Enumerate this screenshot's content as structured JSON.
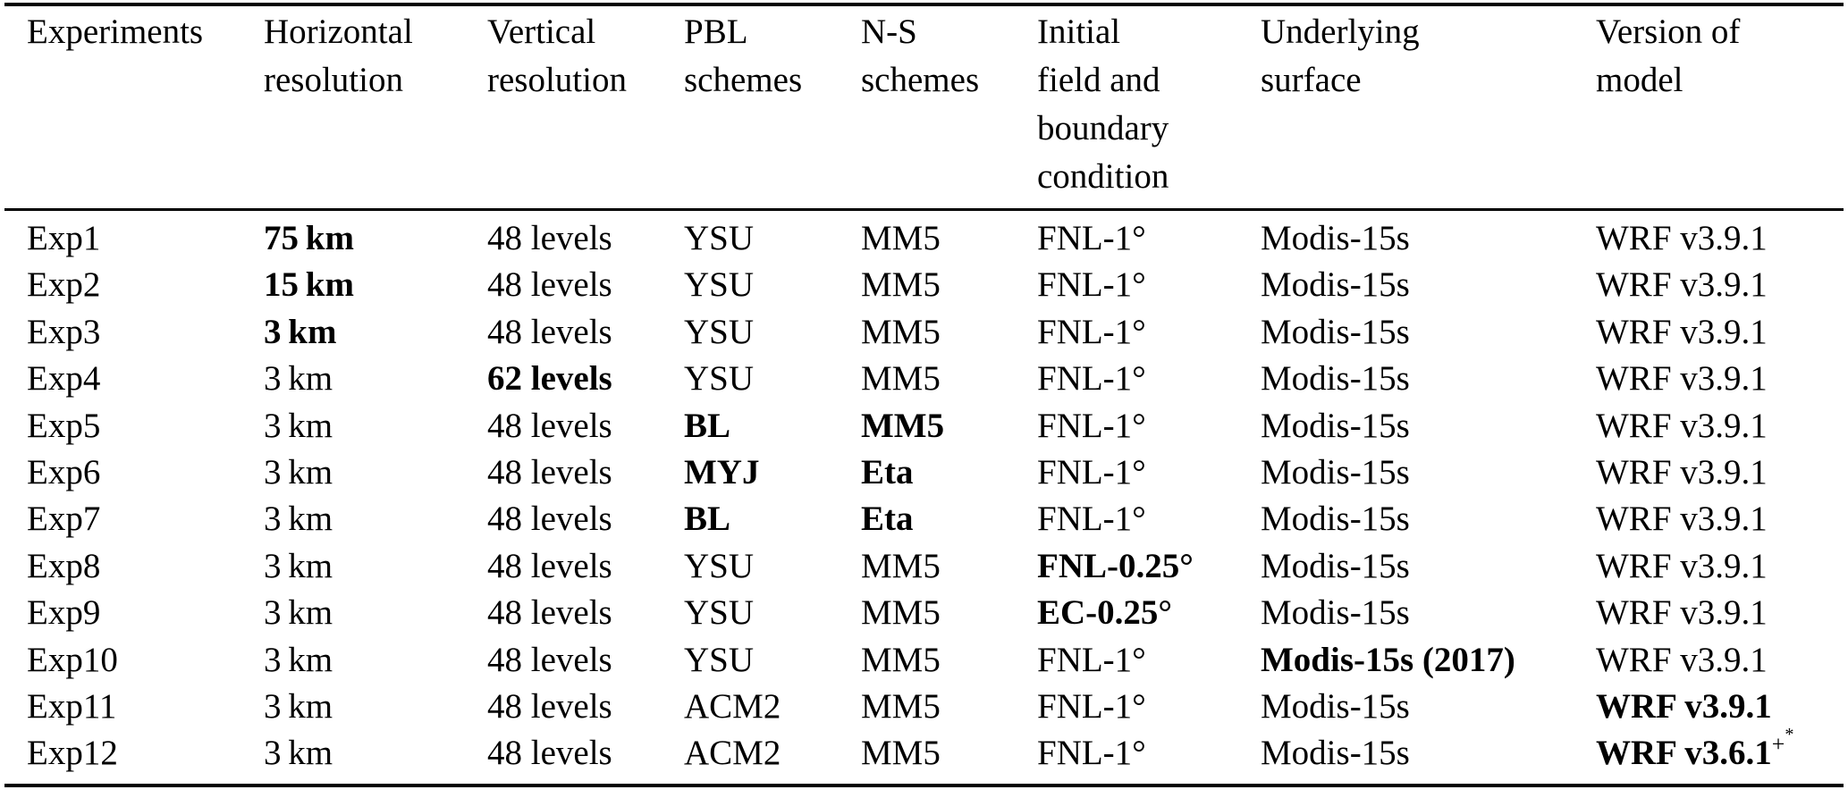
{
  "page": {
    "background_color": "#ffffff",
    "text_color": "#000000"
  },
  "table": {
    "columns": [
      {
        "id": "experiments",
        "label": "Experiments"
      },
      {
        "id": "horizontal-resolution",
        "label": "Horizontal\nresolution"
      },
      {
        "id": "vertical-resolution",
        "label": "Vertical\nresolution"
      },
      {
        "id": "pbl-schemes",
        "label": "PBL\nschemes"
      },
      {
        "id": "ns-schemes",
        "label": "N-S\nschemes"
      },
      {
        "id": "initial-field",
        "label": "Initial\nfield and\nboundary\ncondition"
      },
      {
        "id": "underlying-surface",
        "label": "Underlying\nsurface"
      },
      {
        "id": "model-version",
        "label": "Version of\nmodel"
      }
    ],
    "rows": [
      {
        "cells": [
          {
            "text": "Exp1"
          },
          {
            "text": "75 km",
            "bold": true
          },
          {
            "text": "48 levels"
          },
          {
            "text": "YSU"
          },
          {
            "text": "MM5"
          },
          {
            "text": "FNL-1°"
          },
          {
            "text": "Modis-15s"
          },
          {
            "text": "WRF v3.9.1"
          }
        ]
      },
      {
        "cells": [
          {
            "text": "Exp2"
          },
          {
            "text": "15 km",
            "bold": true
          },
          {
            "text": "48 levels"
          },
          {
            "text": "YSU"
          },
          {
            "text": "MM5"
          },
          {
            "text": "FNL-1°"
          },
          {
            "text": "Modis-15s"
          },
          {
            "text": "WRF v3.9.1"
          }
        ]
      },
      {
        "cells": [
          {
            "text": "Exp3"
          },
          {
            "text": "3 km",
            "bold": true
          },
          {
            "text": "48 levels"
          },
          {
            "text": "YSU"
          },
          {
            "text": "MM5"
          },
          {
            "text": "FNL-1°"
          },
          {
            "text": "Modis-15s"
          },
          {
            "text": "WRF v3.9.1"
          }
        ]
      },
      {
        "cells": [
          {
            "text": "Exp4"
          },
          {
            "text": "3 km"
          },
          {
            "text": "62 levels",
            "bold": true
          },
          {
            "text": "YSU"
          },
          {
            "text": "MM5"
          },
          {
            "text": "FNL-1°"
          },
          {
            "text": "Modis-15s"
          },
          {
            "text": "WRF v3.9.1"
          }
        ]
      },
      {
        "cells": [
          {
            "text": "Exp5"
          },
          {
            "text": "3 km"
          },
          {
            "text": "48 levels"
          },
          {
            "text": "BL",
            "bold": true
          },
          {
            "text": "MM5",
            "bold": true
          },
          {
            "text": "FNL-1°"
          },
          {
            "text": "Modis-15s"
          },
          {
            "text": "WRF v3.9.1"
          }
        ]
      },
      {
        "cells": [
          {
            "text": "Exp6"
          },
          {
            "text": "3 km"
          },
          {
            "text": "48 levels"
          },
          {
            "text": "MYJ",
            "bold": true
          },
          {
            "text": "Eta",
            "bold": true
          },
          {
            "text": "FNL-1°"
          },
          {
            "text": "Modis-15s"
          },
          {
            "text": "WRF v3.9.1"
          }
        ]
      },
      {
        "cells": [
          {
            "text": "Exp7"
          },
          {
            "text": "3 km"
          },
          {
            "text": "48 levels"
          },
          {
            "text": "BL",
            "bold": true
          },
          {
            "text": "Eta",
            "bold": true
          },
          {
            "text": "FNL-1°"
          },
          {
            "text": "Modis-15s"
          },
          {
            "text": "WRF v3.9.1"
          }
        ]
      },
      {
        "cells": [
          {
            "text": "Exp8"
          },
          {
            "text": "3 km"
          },
          {
            "text": "48 levels"
          },
          {
            "text": "YSU"
          },
          {
            "text": "MM5"
          },
          {
            "text": "FNL-0.25°",
            "bold": true
          },
          {
            "text": "Modis-15s"
          },
          {
            "text": "WRF v3.9.1"
          }
        ]
      },
      {
        "cells": [
          {
            "text": "Exp9"
          },
          {
            "text": "3 km"
          },
          {
            "text": "48 levels"
          },
          {
            "text": "YSU"
          },
          {
            "text": "MM5"
          },
          {
            "text": "EC-0.25°",
            "bold": true
          },
          {
            "text": "Modis-15s"
          },
          {
            "text": "WRF v3.9.1"
          }
        ]
      },
      {
        "cells": [
          {
            "text": "Exp10"
          },
          {
            "text": "3 km"
          },
          {
            "text": "48 levels"
          },
          {
            "text": "YSU"
          },
          {
            "text": "MM5"
          },
          {
            "text": "FNL-1°"
          },
          {
            "text": "Modis-15s (2017)",
            "bold": true
          },
          {
            "text": "WRF v3.9.1"
          }
        ]
      },
      {
        "cells": [
          {
            "text": "Exp11"
          },
          {
            "text": "3 km"
          },
          {
            "text": "48 levels"
          },
          {
            "text": "ACM2"
          },
          {
            "text": "MM5"
          },
          {
            "text": "FNL-1°"
          },
          {
            "text": "Modis-15s"
          },
          {
            "text": "WRF v3.9.1",
            "bold": true
          }
        ]
      },
      {
        "cells": [
          {
            "text": "Exp12"
          },
          {
            "text": "3 km"
          },
          {
            "text": "48 levels"
          },
          {
            "text": "ACM2"
          },
          {
            "text": "MM5"
          },
          {
            "text": "FNL-1°"
          },
          {
            "text": "Modis-15s"
          },
          {
            "text": "WRF v3.6.1",
            "bold": true,
            "sup": "+",
            "supsup": "*"
          }
        ]
      }
    ]
  }
}
